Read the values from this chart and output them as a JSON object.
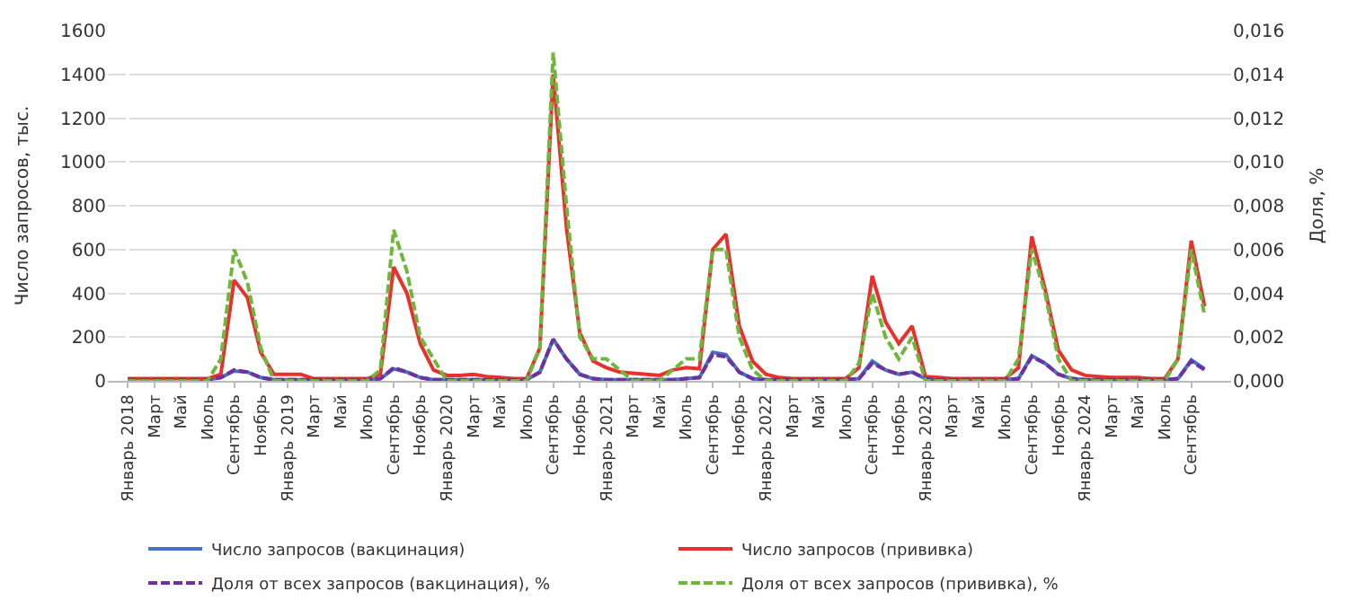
{
  "chart_data": {
    "type": "line",
    "ylabel": "Число запросов, тыс.",
    "y2label": "Доля, %",
    "categories": [
      "Январь 2018",
      null,
      "Март",
      null,
      "Май",
      null,
      "Июль",
      null,
      "Сентябрь",
      null,
      "Ноябрь",
      null,
      "Январь 2019",
      null,
      "Март",
      null,
      "Май",
      null,
      "Июль",
      null,
      "Сентябрь",
      null,
      "Ноябрь",
      null,
      "Январь 2020",
      null,
      "Март",
      null,
      "Май",
      null,
      "Июль",
      null,
      "Сентябрь",
      null,
      "Ноябрь",
      null,
      "Январь 2021",
      null,
      "Март",
      null,
      "Май",
      null,
      "Июль",
      null,
      "Сентябрь",
      null,
      "Ноябрь",
      null,
      "Январь 2022",
      null,
      "Март",
      null,
      "Май",
      null,
      "Июль",
      null,
      "Сентябрь",
      null,
      "Ноябрь",
      null,
      "Январь 2023",
      null,
      "Март",
      null,
      "Май",
      null,
      "Июль",
      null,
      "Сентябрь",
      null,
      "Ноябрь",
      null,
      "Январь 2024",
      null,
      "Март",
      null,
      "Май",
      null,
      "Июль",
      null,
      "Сентябрь",
      null
    ],
    "series": [
      {
        "name": "Число запросов (вакцинация)",
        "color": "#4472c4",
        "line_style": "solid",
        "values": [
          null,
          null,
          null,
          null,
          null,
          5,
          5,
          15,
          45,
          40,
          15,
          5,
          5,
          5,
          5,
          5,
          5,
          5,
          5,
          10,
          55,
          40,
          15,
          5,
          5,
          5,
          5,
          5,
          5,
          5,
          5,
          40,
          190,
          100,
          30,
          10,
          5,
          5,
          5,
          5,
          5,
          5,
          10,
          15,
          130,
          120,
          40,
          10,
          5,
          5,
          5,
          5,
          5,
          5,
          5,
          10,
          90,
          50,
          30,
          40,
          10,
          5,
          5,
          5,
          5,
          5,
          5,
          10,
          115,
          80,
          30,
          10,
          5,
          5,
          5,
          5,
          5,
          5,
          5,
          10,
          95,
          55
        ]
      },
      {
        "name": "Число запросов (прививка)",
        "color": "#e8302c",
        "line_style": "solid",
        "values": [
          10,
          10,
          10,
          10,
          10,
          10,
          10,
          30,
          460,
          380,
          130,
          30,
          30,
          30,
          10,
          10,
          10,
          10,
          10,
          30,
          520,
          400,
          170,
          50,
          25,
          25,
          30,
          20,
          15,
          10,
          10,
          150,
          1400,
          700,
          220,
          90,
          60,
          40,
          35,
          30,
          25,
          50,
          60,
          55,
          600,
          670,
          250,
          90,
          30,
          15,
          10,
          10,
          10,
          10,
          10,
          60,
          480,
          270,
          170,
          250,
          20,
          15,
          10,
          10,
          10,
          10,
          10,
          60,
          660,
          420,
          140,
          50,
          25,
          20,
          15,
          15,
          15,
          10,
          10,
          100,
          640,
          340
        ]
      },
      {
        "name": "Доля от всех запросов (вакцинация), %",
        "color": "#7030a0",
        "line_style": "dashed",
        "axis": "y2",
        "values": [
          5e-05,
          5e-05,
          5e-05,
          5e-05,
          5e-05,
          5e-05,
          5e-05,
          0.00015,
          0.0005,
          0.0004,
          0.00015,
          5e-05,
          5e-05,
          5e-05,
          5e-05,
          5e-05,
          5e-05,
          5e-05,
          5e-05,
          0.0001,
          0.0006,
          0.0004,
          0.00015,
          5e-05,
          5e-05,
          5e-05,
          5e-05,
          5e-05,
          5e-05,
          5e-05,
          5e-05,
          0.0004,
          0.0019,
          0.001,
          0.0003,
          0.0001,
          5e-05,
          5e-05,
          5e-05,
          5e-05,
          5e-05,
          5e-05,
          0.0001,
          0.00015,
          0.0012,
          0.0011,
          0.0004,
          0.0001,
          5e-05,
          5e-05,
          5e-05,
          5e-05,
          5e-05,
          5e-05,
          5e-05,
          0.0001,
          0.0008,
          0.0005,
          0.0003,
          0.0004,
          0.0001,
          5e-05,
          5e-05,
          5e-05,
          5e-05,
          5e-05,
          5e-05,
          0.0001,
          0.0011,
          0.0008,
          0.0003,
          0.0001,
          5e-05,
          5e-05,
          5e-05,
          5e-05,
          5e-05,
          5e-05,
          5e-05,
          0.0001,
          0.0009,
          0.0005
        ]
      },
      {
        "name": "Доля от всех запросов (прививка), %",
        "color": "#70b63c",
        "line_style": "dashed",
        "axis": "y2",
        "values": [
          0,
          0,
          0,
          0,
          0,
          0,
          0,
          0.001,
          0.006,
          0.0045,
          0.0015,
          0,
          0,
          0,
          0,
          0,
          0,
          0,
          0,
          0.0005,
          0.0069,
          0.005,
          0.002,
          0.001,
          0,
          0,
          0,
          0,
          0,
          0,
          0,
          0.0015,
          0.015,
          0.008,
          0.002,
          0.001,
          0.001,
          0.0005,
          0,
          0,
          0,
          0.0005,
          0.001,
          0.001,
          0.006,
          0.006,
          0.002,
          0.0005,
          0,
          0,
          0,
          0,
          0,
          0,
          0,
          0.0008,
          0.004,
          0.002,
          0.001,
          0.002,
          0,
          0,
          0,
          0,
          0,
          0,
          0,
          0.001,
          0.006,
          0.004,
          0.001,
          0,
          0,
          0,
          0,
          0,
          0,
          0,
          0,
          0.001,
          0.006,
          0.003
        ]
      }
    ],
    "ylim": [
      0,
      1600
    ],
    "yticks": [
      0,
      200,
      400,
      600,
      800,
      1000,
      1200,
      1400,
      1600
    ],
    "y2lim": [
      0,
      0.016
    ],
    "y2ticks": [
      {
        "value": 0,
        "label": "0,000"
      },
      {
        "value": 0.002,
        "label": "0,002"
      },
      {
        "value": 0.004,
        "label": "0,004"
      },
      {
        "value": 0.006,
        "label": "0,006"
      },
      {
        "value": 0.008,
        "label": "0,008"
      },
      {
        "value": 0.01,
        "label": "0,010"
      },
      {
        "value": 0.012,
        "label": "0,012"
      },
      {
        "value": 0.014,
        "label": "0,014"
      },
      {
        "value": 0.016,
        "label": "0,016"
      }
    ],
    "grid": "y",
    "legend": "bottom",
    "marker": "none"
  }
}
